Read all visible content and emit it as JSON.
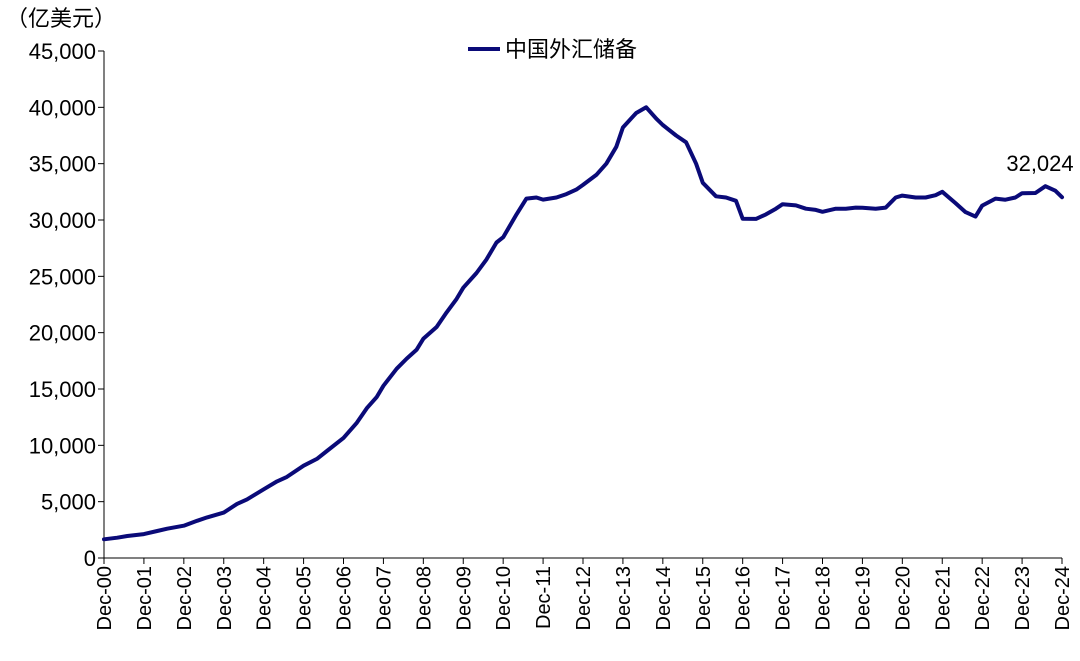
{
  "chart_data": {
    "type": "line",
    "unit_label": "（亿美元）",
    "title": "",
    "xlabel": "",
    "ylabel": "",
    "ylim": [
      0,
      45000
    ],
    "yticks": [
      0,
      5000,
      10000,
      15000,
      20000,
      25000,
      30000,
      35000,
      40000,
      45000
    ],
    "ytick_labels": [
      "0",
      "5,000",
      "10,000",
      "15,000",
      "20,000",
      "25,000",
      "30,000",
      "35,000",
      "40,000",
      "45,000"
    ],
    "xlim": [
      2000.917,
      2024.917
    ],
    "xtick_labels": [
      "Dec-00",
      "Dec-01",
      "Dec-02",
      "Dec-03",
      "Dec-04",
      "Dec-05",
      "Dec-06",
      "Dec-07",
      "Dec-08",
      "Dec-09",
      "Dec-10",
      "Dec-11",
      "Dec-12",
      "Dec-13",
      "Dec-14",
      "Dec-15",
      "Dec-16",
      "Dec-17",
      "Dec-18",
      "Dec-19",
      "Dec-20",
      "Dec-21",
      "Dec-22",
      "Dec-23",
      "Dec-24"
    ],
    "grid": false,
    "legend": {
      "position": "top-center",
      "entries": [
        "中国外汇储备"
      ]
    },
    "series": [
      {
        "name": "中国外汇储备",
        "color": "#0a0a78",
        "x": [
          2000.917,
          2001.25,
          2001.5,
          2001.917,
          2002.25,
          2002.5,
          2002.917,
          2003.25,
          2003.5,
          2003.917,
          2004.25,
          2004.5,
          2004.917,
          2005.25,
          2005.5,
          2005.917,
          2006.25,
          2006.5,
          2006.917,
          2007.25,
          2007.5,
          2007.75,
          2007.917,
          2008.25,
          2008.5,
          2008.75,
          2008.917,
          2009.25,
          2009.5,
          2009.75,
          2009.917,
          2010.25,
          2010.5,
          2010.75,
          2010.917,
          2011.25,
          2011.5,
          2011.75,
          2011.917,
          2012.25,
          2012.5,
          2012.75,
          2012.917,
          2013.25,
          2013.5,
          2013.75,
          2013.917,
          2014.25,
          2014.5,
          2014.75,
          2014.917,
          2015.25,
          2015.5,
          2015.75,
          2015.917,
          2016.25,
          2016.5,
          2016.75,
          2016.917,
          2017.25,
          2017.5,
          2017.75,
          2017.917,
          2018.25,
          2018.5,
          2018.75,
          2018.917,
          2019.25,
          2019.5,
          2019.75,
          2019.917,
          2020.25,
          2020.5,
          2020.75,
          2020.917,
          2021.25,
          2021.5,
          2021.75,
          2021.917,
          2022.25,
          2022.5,
          2022.75,
          2022.917,
          2023.25,
          2023.5,
          2023.75,
          2023.917,
          2024.25,
          2024.5,
          2024.75,
          2024.917
        ],
        "values": [
          1656,
          1800,
          1950,
          2122,
          2400,
          2600,
          2864,
          3300,
          3600,
          4033,
          4800,
          5200,
          6099,
          6800,
          7200,
          8189,
          8800,
          9500,
          10663,
          12000,
          13300,
          14300,
          15282,
          16800,
          17700,
          18500,
          19460,
          20500,
          21800,
          23000,
          23992,
          25300,
          26500,
          28000,
          28473,
          30500,
          31900,
          32000,
          31811,
          32000,
          32300,
          32700,
          33116,
          34000,
          35000,
          36500,
          38213,
          39500,
          40000,
          39000,
          38430,
          37500,
          36900,
          35000,
          33304,
          32100,
          32000,
          31700,
          30105,
          30100,
          30500,
          31000,
          31399,
          31300,
          31000,
          30900,
          30727,
          31000,
          31000,
          31100,
          31079,
          31000,
          31100,
          32000,
          32165,
          32000,
          32000,
          32200,
          32502,
          31500,
          30700,
          30300,
          31277,
          31900,
          31800,
          32000,
          32380,
          32400,
          33000,
          32600,
          32024
        ],
        "end_label": "32,024"
      }
    ]
  }
}
